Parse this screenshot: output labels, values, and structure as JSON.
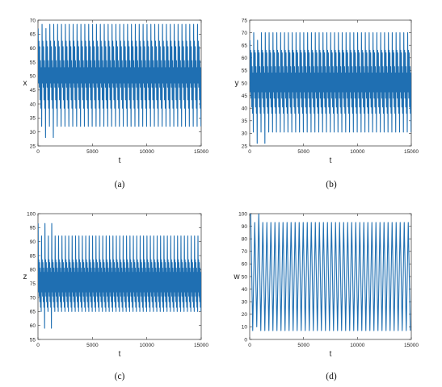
{
  "chart_data": [
    {
      "type": "line",
      "panel": "(a)",
      "caption": "(a)",
      "xlabel": "t",
      "ylabel": "x",
      "xlim": [
        0,
        15000
      ],
      "ylim": [
        25,
        70
      ],
      "xticks": [
        "0",
        "5000",
        "10000",
        "15000"
      ],
      "yticks": [
        "25",
        "30",
        "35",
        "40",
        "45",
        "50",
        "55",
        "60",
        "65",
        "70"
      ],
      "grid": false,
      "color": "#1f6fb2",
      "series": [
        {
          "x_start": 0,
          "x_end": 15000,
          "oscillations": 42,
          "transient_until": 1200,
          "upper_levels": [
            68.5,
            62.5,
            60.5,
            55.5,
            53
          ],
          "lower_levels": [
            47.5,
            46,
            41.5,
            38.5,
            32
          ],
          "transient_max": 67,
          "transient_min": 28
        }
      ]
    },
    {
      "type": "line",
      "panel": "(b)",
      "caption": "(b)",
      "xlabel": "t",
      "ylabel": "y",
      "xlim": [
        0,
        15000
      ],
      "ylim": [
        25,
        75
      ],
      "xticks": [
        "0",
        "5000",
        "10000",
        "15000"
      ],
      "yticks": [
        "25",
        "30",
        "35",
        "40",
        "45",
        "50",
        "55",
        "60",
        "65",
        "70",
        "75"
      ],
      "grid": false,
      "color": "#1f6fb2",
      "series": [
        {
          "x_start": 0,
          "x_end": 15000,
          "oscillations": 42,
          "transient_until": 1200,
          "upper_levels": [
            70,
            63,
            62,
            56.5,
            54
          ],
          "lower_levels": [
            46.5,
            44,
            40.5,
            38,
            30.5
          ],
          "transient_max": 67,
          "transient_min": 26
        }
      ]
    },
    {
      "type": "line",
      "panel": "(c)",
      "caption": "(c)",
      "xlabel": "t",
      "ylabel": "z",
      "xlim": [
        0,
        15000
      ],
      "ylim": [
        55,
        100
      ],
      "xticks": [
        "0",
        "5000",
        "10000",
        "15000"
      ],
      "yticks": [
        "55",
        "60",
        "65",
        "70",
        "75",
        "80",
        "85",
        "90",
        "95",
        "100"
      ],
      "grid": false,
      "color": "#1f6fb2",
      "series": [
        {
          "x_start": 0,
          "x_end": 15000,
          "oscillations": 48,
          "transient_until": 1400,
          "upper_levels": [
            92,
            83.5,
            82.5,
            80.5,
            79
          ],
          "lower_levels": [
            72,
            70.5,
            68.5,
            66.5,
            65
          ],
          "transient_max": 96.5,
          "transient_min": 59
        }
      ]
    },
    {
      "type": "line",
      "panel": "(d)",
      "caption": "(d)",
      "xlabel": "t",
      "ylabel": "w",
      "xlim": [
        0,
        15000
      ],
      "ylim": [
        0,
        100
      ],
      "xticks": [
        "0",
        "5000",
        "10000",
        "15000"
      ],
      "yticks": [
        "0",
        "10",
        "20",
        "30",
        "40",
        "50",
        "60",
        "70",
        "80",
        "90",
        "100"
      ],
      "grid": false,
      "color": "#1f6fb2",
      "series": [
        {
          "x_start": 0,
          "x_end": 15000,
          "oscillations": 40,
          "transient_until": 1000,
          "upper_levels": [
            93
          ],
          "lower_levels": [
            7
          ],
          "transient_max": 100,
          "transient_min": 10
        }
      ]
    }
  ]
}
